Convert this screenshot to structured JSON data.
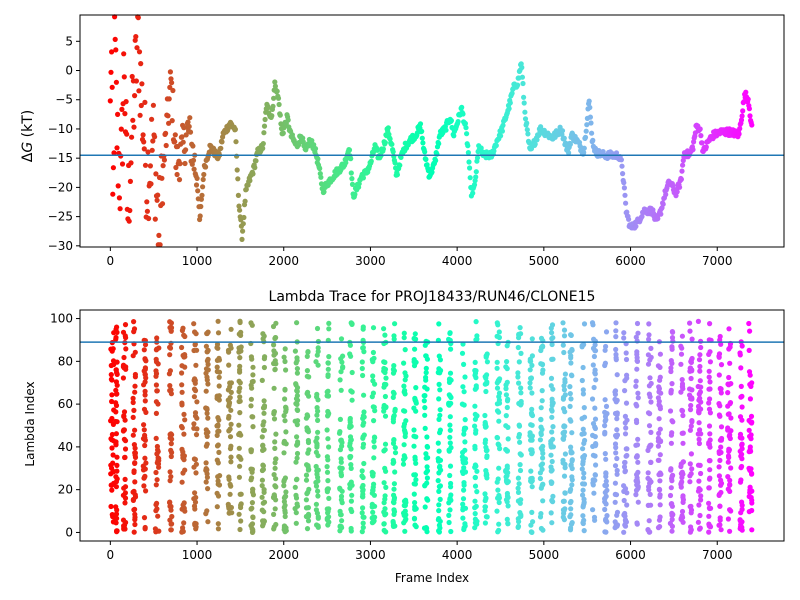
{
  "figure": {
    "background": "#ffffff"
  },
  "chart_data": [
    {
      "type": "scatter",
      "title": "",
      "xlabel": "",
      "ylabel_prefix": "Δ",
      "ylabel_var": "G",
      "ylabel_suffix": " (kT)",
      "xlim": [
        -350,
        7770
      ],
      "ylim": [
        -30.2,
        9.5
      ],
      "xticks": [
        0,
        1000,
        2000,
        3000,
        4000,
        5000,
        6000,
        7000
      ],
      "yticks": [
        -30,
        -25,
        -20,
        -15,
        -10,
        -5,
        0,
        5
      ],
      "hline": -14.5,
      "hline_color": "#1f77b4",
      "colormap": "rainbow",
      "x_max": 7400,
      "trace_keypoints": [
        [
          0,
          -8
        ],
        [
          10,
          8
        ],
        [
          30,
          -28
        ],
        [
          50,
          5
        ],
        [
          80,
          -12
        ],
        [
          120,
          -20
        ],
        [
          160,
          2
        ],
        [
          200,
          -25
        ],
        [
          250,
          -10
        ],
        [
          320,
          6
        ],
        [
          360,
          -5
        ],
        [
          420,
          -18
        ],
        [
          500,
          -12
        ],
        [
          560,
          -28
        ],
        [
          620,
          -15
        ],
        [
          700,
          -2
        ],
        [
          760,
          -16
        ],
        [
          820,
          -14
        ],
        [
          900,
          -10
        ],
        [
          960,
          -15
        ],
        [
          1000,
          -18
        ],
        [
          1030,
          -26
        ],
        [
          1080,
          -17
        ],
        [
          1150,
          -13
        ],
        [
          1250,
          -15
        ],
        [
          1300,
          -11
        ],
        [
          1380,
          -9
        ],
        [
          1440,
          -10
        ],
        [
          1480,
          -22
        ],
        [
          1520,
          -28.5
        ],
        [
          1560,
          -21
        ],
        [
          1600,
          -19
        ],
        [
          1650,
          -17
        ],
        [
          1700,
          -14
        ],
        [
          1760,
          -13
        ],
        [
          1800,
          -6
        ],
        [
          1860,
          -8
        ],
        [
          1900,
          -2
        ],
        [
          1940,
          -5
        ],
        [
          1980,
          -11
        ],
        [
          2040,
          -8
        ],
        [
          2080,
          -11
        ],
        [
          2150,
          -13
        ],
        [
          2200,
          -11
        ],
        [
          2250,
          -14
        ],
        [
          2300,
          -12
        ],
        [
          2350,
          -13
        ],
        [
          2400,
          -16
        ],
        [
          2450,
          -20.5
        ],
        [
          2520,
          -19
        ],
        [
          2600,
          -17.5
        ],
        [
          2700,
          -16
        ],
        [
          2760,
          -13
        ],
        [
          2800,
          -21.5
        ],
        [
          2850,
          -20
        ],
        [
          2900,
          -18
        ],
        [
          2950,
          -17.5
        ],
        [
          3000,
          -16
        ],
        [
          3050,
          -13
        ],
        [
          3100,
          -15
        ],
        [
          3150,
          -13
        ],
        [
          3200,
          -10
        ],
        [
          3250,
          -13
        ],
        [
          3300,
          -18
        ],
        [
          3350,
          -15
        ],
        [
          3400,
          -13
        ],
        [
          3450,
          -12
        ],
        [
          3520,
          -11
        ],
        [
          3580,
          -9.5
        ],
        [
          3620,
          -14
        ],
        [
          3680,
          -18
        ],
        [
          3740,
          -16
        ],
        [
          3800,
          -11
        ],
        [
          3860,
          -10
        ],
        [
          3920,
          -8
        ],
        [
          3960,
          -11
        ],
        [
          4000,
          -9
        ],
        [
          4050,
          -6.5
        ],
        [
          4100,
          -10
        ],
        [
          4130,
          -14
        ],
        [
          4160,
          -21
        ],
        [
          4200,
          -20
        ],
        [
          4250,
          -13
        ],
        [
          4300,
          -14.5
        ],
        [
          4400,
          -14.5
        ],
        [
          4460,
          -12
        ],
        [
          4520,
          -10
        ],
        [
          4600,
          -6
        ],
        [
          4650,
          -3
        ],
        [
          4700,
          -2
        ],
        [
          4740,
          1.5
        ],
        [
          4780,
          -7
        ],
        [
          4840,
          -14
        ],
        [
          4900,
          -12
        ],
        [
          4960,
          -10
        ],
        [
          5100,
          -11.5
        ],
        [
          5200,
          -10
        ],
        [
          5280,
          -14
        ],
        [
          5320,
          -11
        ],
        [
          5380,
          -12
        ],
        [
          5460,
          -14
        ],
        [
          5520,
          -5
        ],
        [
          5560,
          -12
        ],
        [
          5600,
          -14
        ],
        [
          5700,
          -14.5
        ],
        [
          5860,
          -14.5
        ],
        [
          5900,
          -16
        ],
        [
          5950,
          -24
        ],
        [
          6000,
          -27
        ],
        [
          6080,
          -26
        ],
        [
          6150,
          -24
        ],
        [
          6250,
          -24
        ],
        [
          6300,
          -26
        ],
        [
          6350,
          -24
        ],
        [
          6400,
          -21
        ],
        [
          6450,
          -19
        ],
        [
          6520,
          -21
        ],
        [
          6580,
          -19
        ],
        [
          6620,
          -14
        ],
        [
          6680,
          -14.5
        ],
        [
          6720,
          -13
        ],
        [
          6760,
          -9.5
        ],
        [
          6800,
          -10
        ],
        [
          6840,
          -14
        ],
        [
          6900,
          -12
        ],
        [
          6960,
          -11
        ],
        [
          7050,
          -10.5
        ],
        [
          7150,
          -10.5
        ],
        [
          7250,
          -11
        ],
        [
          7320,
          -4
        ],
        [
          7360,
          -5
        ],
        [
          7400,
          -10
        ]
      ]
    },
    {
      "type": "scatter",
      "title": "Lambda Trace for PROJ18433/RUN46/CLONE15",
      "xlabel": "Frame Index",
      "ylabel": "Lambda Index",
      "xlim": [
        -350,
        7770
      ],
      "ylim": [
        -4,
        104
      ],
      "xticks": [
        0,
        1000,
        2000,
        3000,
        4000,
        5000,
        6000,
        7000
      ],
      "yticks": [
        0,
        20,
        40,
        60,
        80,
        100
      ],
      "hline": 89,
      "hline_color": "#1f77b4",
      "colormap": "rainbow",
      "x_max": 7400,
      "lambda_range": [
        0,
        99
      ],
      "sweep_columns": [
        [
          0,
          40
        ],
        [
          60,
          20
        ],
        [
          150,
          30
        ],
        [
          260,
          30
        ],
        [
          380,
          30
        ],
        [
          520,
          40
        ],
        [
          680,
          30
        ],
        [
          820,
          40
        ],
        [
          960,
          40
        ],
        [
          1100,
          30
        ],
        [
          1230,
          30
        ],
        [
          1360,
          40
        ],
        [
          1480,
          30
        ],
        [
          1620,
          30
        ],
        [
          1750,
          30
        ],
        [
          1880,
          30
        ],
        [
          2000,
          30
        ],
        [
          2130,
          30
        ],
        [
          2260,
          30
        ],
        [
          2370,
          30
        ],
        [
          2500,
          20
        ],
        [
          2640,
          40
        ],
        [
          2760,
          30
        ],
        [
          2900,
          30
        ],
        [
          3020,
          30
        ],
        [
          3150,
          30
        ],
        [
          3260,
          30
        ],
        [
          3380,
          30
        ],
        [
          3500,
          30
        ],
        [
          3620,
          40
        ],
        [
          3780,
          30
        ],
        [
          3900,
          30
        ],
        [
          4060,
          40
        ],
        [
          4200,
          30
        ],
        [
          4320,
          30
        ],
        [
          4460,
          30
        ],
        [
          4560,
          30
        ],
        [
          4700,
          40
        ],
        [
          4840,
          30
        ],
        [
          4960,
          30
        ],
        [
          5080,
          30
        ],
        [
          5220,
          30
        ],
        [
          5300,
          30
        ],
        [
          5440,
          30
        ],
        [
          5560,
          40
        ],
        [
          5700,
          30
        ],
        [
          5820,
          30
        ],
        [
          5920,
          40
        ],
        [
          6060,
          30
        ],
        [
          6200,
          40
        ],
        [
          6320,
          30
        ],
        [
          6460,
          30
        ],
        [
          6580,
          30
        ],
        [
          6680,
          30
        ],
        [
          6780,
          30
        ],
        [
          6900,
          30
        ],
        [
          7020,
          30
        ],
        [
          7120,
          40
        ],
        [
          7260,
          30
        ],
        [
          7360,
          40
        ]
      ]
    }
  ]
}
